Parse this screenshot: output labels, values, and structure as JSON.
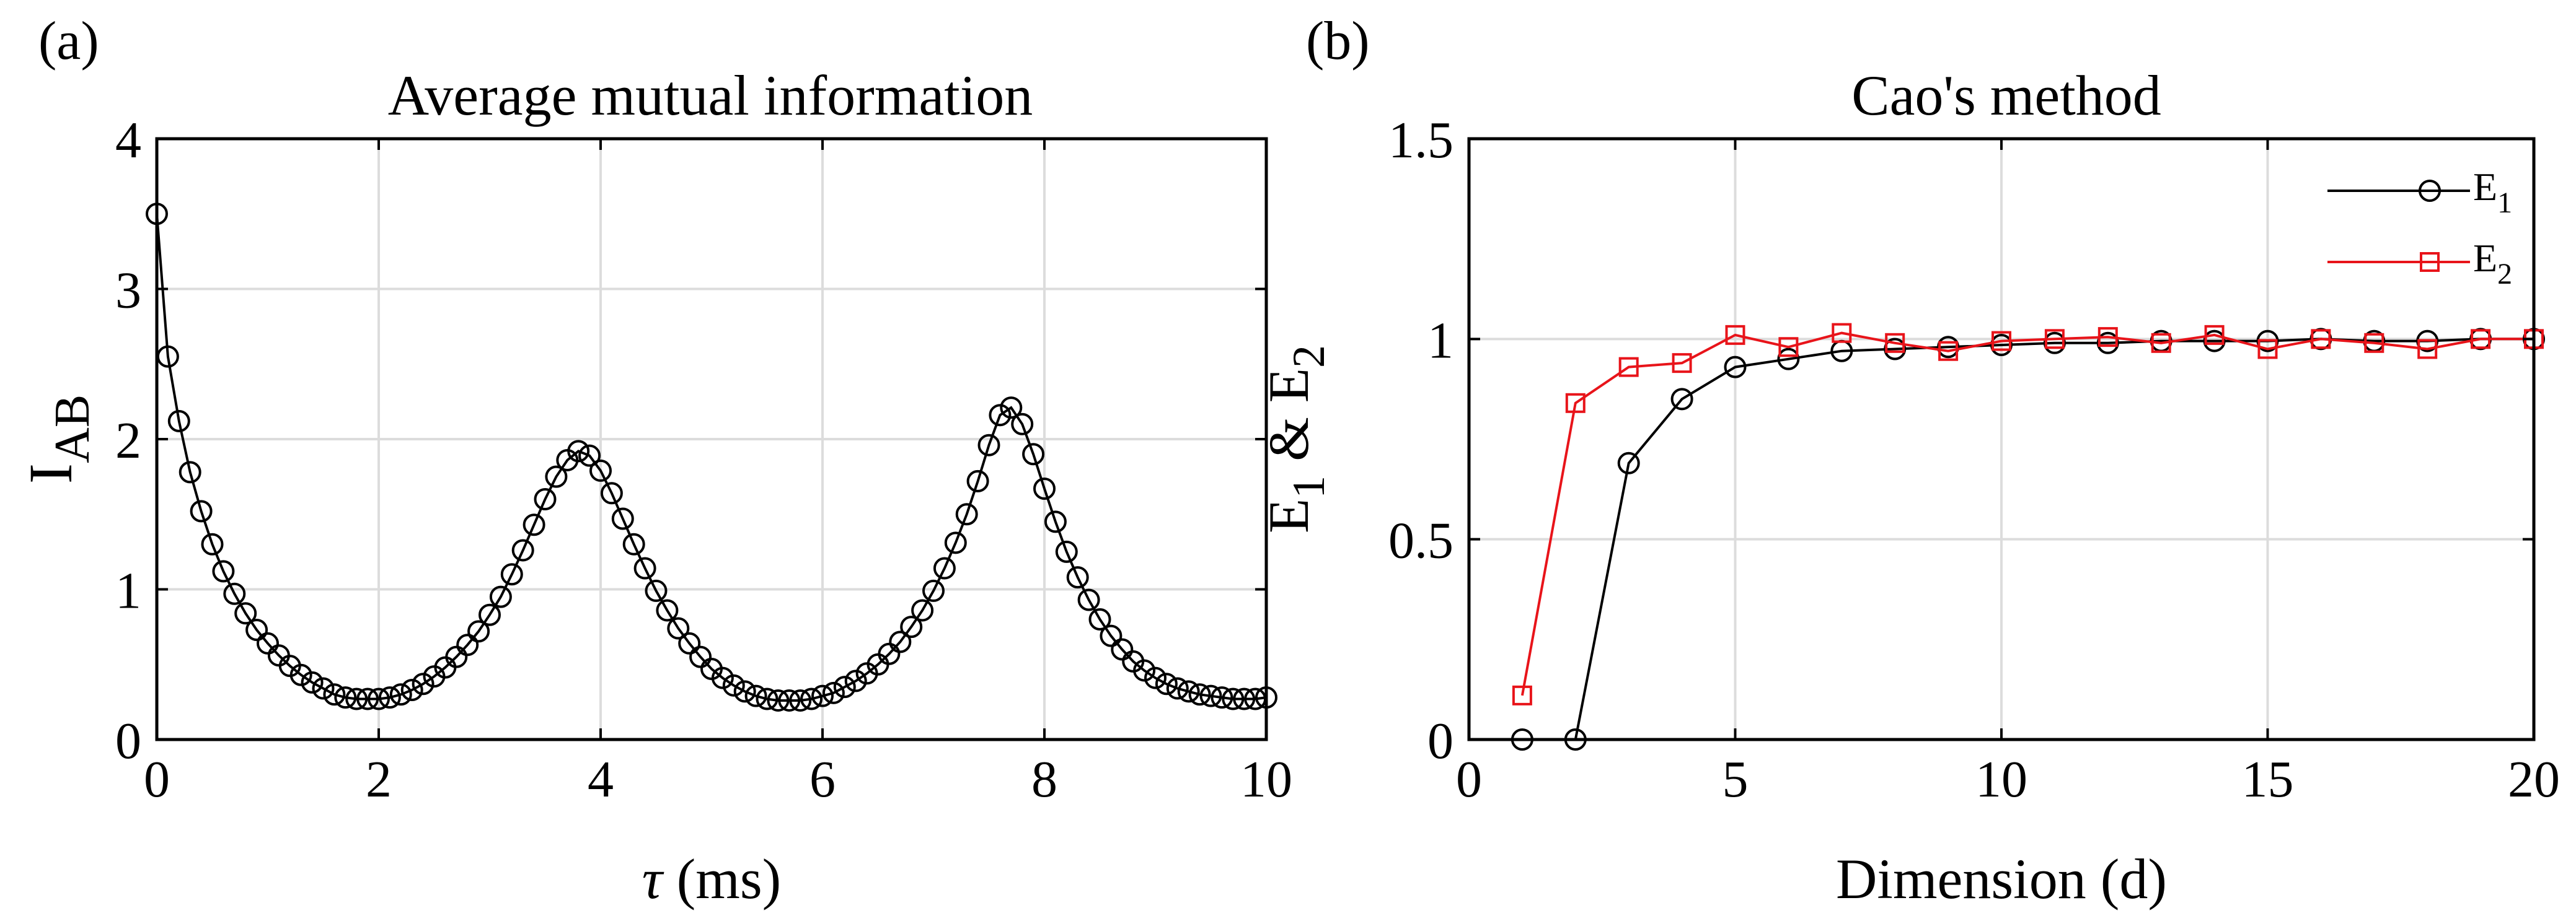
{
  "chart_data": [
    {
      "panel_label": "(a)",
      "type": "line",
      "title": "Average mutual information",
      "xlabel_symbol": "τ",
      "xlabel_unit": " (ms)",
      "ylabel_main": "I",
      "ylabel_sub": "AB",
      "xlim": [
        0,
        10
      ],
      "ylim": [
        0,
        4
      ],
      "xticks": [
        0,
        2,
        4,
        6,
        8,
        10
      ],
      "yticks": [
        0,
        1,
        2,
        3,
        4
      ],
      "grid": true,
      "series": [
        {
          "name": "I_AB",
          "color": "#000000",
          "marker": "circle",
          "x": [
            0,
            0.1,
            0.2,
            0.3,
            0.4,
            0.5,
            0.6,
            0.7,
            0.8,
            0.9,
            1.0,
            1.1,
            1.2,
            1.3,
            1.4,
            1.5,
            1.6,
            1.7,
            1.8,
            1.9,
            2.0,
            2.1,
            2.2,
            2.3,
            2.4,
            2.5,
            2.6,
            2.7,
            2.8,
            2.9,
            3.0,
            3.1,
            3.2,
            3.3,
            3.4,
            3.5,
            3.6,
            3.7,
            3.8,
            3.9,
            4.0,
            4.1,
            4.2,
            4.3,
            4.4,
            4.5,
            4.6,
            4.7,
            4.8,
            4.9,
            5.0,
            5.1,
            5.2,
            5.3,
            5.4,
            5.5,
            5.6,
            5.7,
            5.8,
            5.9,
            6.0,
            6.1,
            6.2,
            6.3,
            6.4,
            6.5,
            6.6,
            6.7,
            6.8,
            6.9,
            7.0,
            7.1,
            7.2,
            7.3,
            7.4,
            7.5,
            7.6,
            7.7,
            7.8,
            7.9,
            8.0,
            8.1,
            8.2,
            8.3,
            8.4,
            8.5,
            8.6,
            8.7,
            8.8,
            8.9,
            9.0,
            9.1,
            9.2,
            9.3,
            9.4,
            9.5,
            9.6,
            9.7,
            9.8,
            9.9,
            10.0
          ],
          "y": [
            3.5,
            2.55,
            2.12,
            1.78,
            1.52,
            1.3,
            1.12,
            0.97,
            0.84,
            0.73,
            0.64,
            0.56,
            0.49,
            0.43,
            0.38,
            0.34,
            0.3,
            0.28,
            0.27,
            0.27,
            0.27,
            0.28,
            0.3,
            0.33,
            0.37,
            0.42,
            0.48,
            0.55,
            0.63,
            0.72,
            0.83,
            0.95,
            1.1,
            1.26,
            1.43,
            1.6,
            1.75,
            1.86,
            1.92,
            1.89,
            1.79,
            1.64,
            1.47,
            1.3,
            1.14,
            0.99,
            0.86,
            0.74,
            0.64,
            0.55,
            0.47,
            0.41,
            0.36,
            0.32,
            0.29,
            0.27,
            0.26,
            0.26,
            0.26,
            0.27,
            0.29,
            0.31,
            0.35,
            0.39,
            0.44,
            0.5,
            0.57,
            0.65,
            0.75,
            0.86,
            0.99,
            1.14,
            1.31,
            1.5,
            1.72,
            1.96,
            2.16,
            2.21,
            2.1,
            1.9,
            1.67,
            1.45,
            1.25,
            1.08,
            0.93,
            0.8,
            0.69,
            0.6,
            0.52,
            0.46,
            0.41,
            0.37,
            0.34,
            0.32,
            0.3,
            0.29,
            0.28,
            0.27,
            0.27,
            0.27,
            0.28
          ]
        }
      ]
    },
    {
      "panel_label": "(b)",
      "type": "line",
      "title": "Cao's method",
      "xlabel": "Dimension (d)",
      "ylabel_parts": [
        "E",
        "1",
        " & E",
        "2"
      ],
      "xlim": [
        0,
        20
      ],
      "ylim": [
        0,
        1.5
      ],
      "xticks": [
        0,
        5,
        10,
        15,
        20
      ],
      "yticks": [
        0,
        0.5,
        1,
        1.5
      ],
      "ytick_labels": [
        "0",
        "0.5",
        "1",
        "1.5"
      ],
      "grid": true,
      "legend_position": "top-right",
      "series": [
        {
          "name": "E",
          "name_sub": "1",
          "color": "#000000",
          "marker": "circle",
          "x": [
            1,
            2,
            3,
            4,
            5,
            6,
            7,
            8,
            9,
            10,
            11,
            12,
            13,
            14,
            15,
            16,
            17,
            18,
            19,
            20
          ],
          "y": [
            0,
            0,
            0.69,
            0.85,
            0.93,
            0.95,
            0.97,
            0.975,
            0.98,
            0.985,
            0.99,
            0.99,
            0.995,
            0.995,
            0.995,
            1.0,
            0.995,
            0.995,
            1.0,
            1.0
          ]
        },
        {
          "name": "E",
          "name_sub": "2",
          "color": "#e8141a",
          "marker": "square",
          "x": [
            1,
            2,
            3,
            4,
            5,
            6,
            7,
            8,
            9,
            10,
            11,
            12,
            13,
            14,
            15,
            16,
            17,
            18,
            19,
            20
          ],
          "y": [
            0.11,
            0.84,
            0.93,
            0.94,
            1.01,
            0.98,
            1.015,
            0.99,
            0.97,
            0.995,
            1.0,
            1.005,
            0.99,
            1.01,
            0.975,
            1.0,
            0.99,
            0.975,
            1.0,
            1.0
          ]
        }
      ]
    }
  ]
}
